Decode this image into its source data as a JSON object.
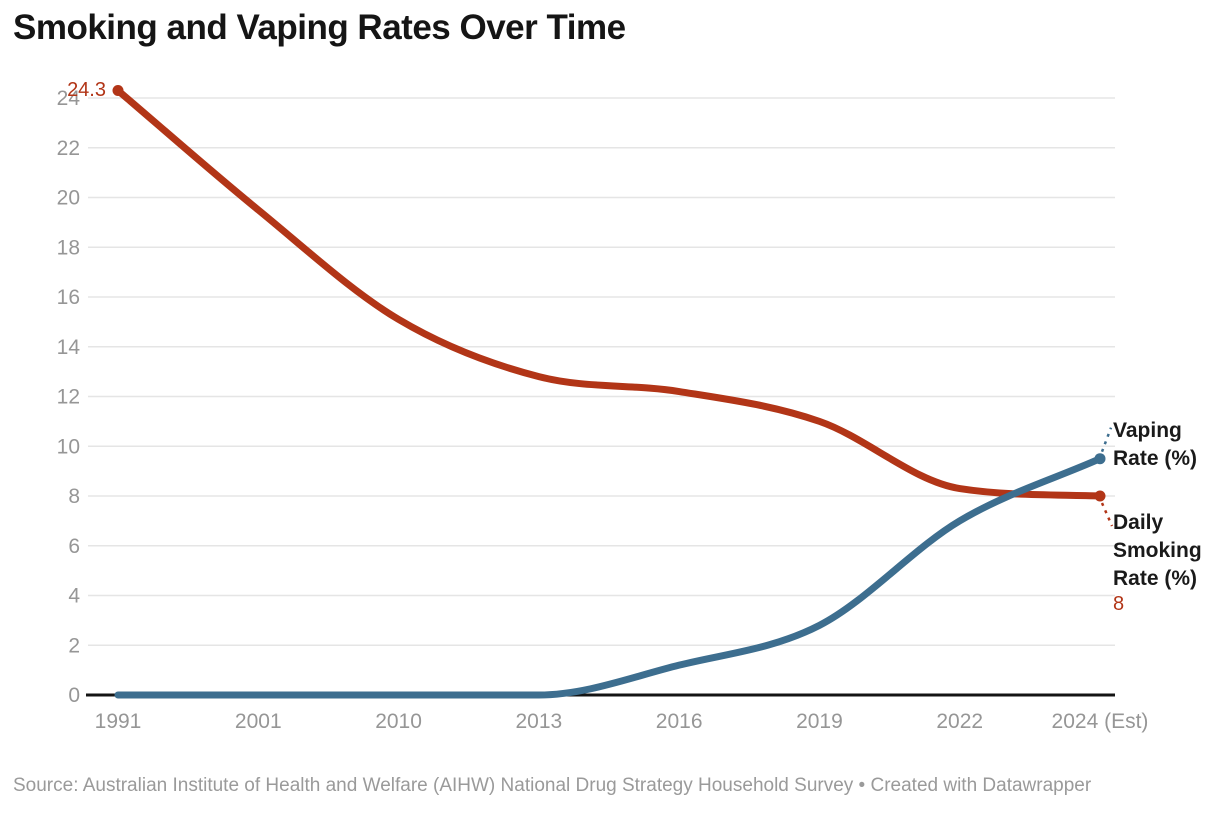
{
  "title": "Smoking and Vaping Rates Over Time",
  "source_note": "Source: Australian Institute of Health and Welfare (AIHW) National Drug Strategy Household Survey • Created with Datawrapper",
  "annotations": {
    "vaping_label": "Vaping Rate (%)",
    "smoking_label": "Daily Smoking Rate (%)",
    "smoking_start_value": "24.3",
    "smoking_end_value": "8"
  },
  "colors": {
    "smoking": "#b23517",
    "vaping": "#3d6e8f",
    "grid": "#e5e5e5",
    "axis": "#141414",
    "tick_text": "#969696"
  },
  "chart_data": {
    "type": "line",
    "title": "Smoking and Vaping Rates Over Time",
    "categories": [
      "1991",
      "2001",
      "2010",
      "2013",
      "2016",
      "2019",
      "2022",
      "2024 (Est)"
    ],
    "series": [
      {
        "name": "Daily Smoking Rate (%)",
        "color": "#b23517",
        "values": [
          24.3,
          19.5,
          15.1,
          12.8,
          12.2,
          11.0,
          8.3,
          8
        ]
      },
      {
        "name": "Vaping Rate (%)",
        "color": "#3d6e8f",
        "values": [
          0,
          0,
          0,
          0,
          1.2,
          2.8,
          7.0,
          9.5
        ]
      }
    ],
    "ylim": [
      0,
      24
    ],
    "ytick_step": 2,
    "xlabel": "",
    "ylabel": "",
    "grid": "horizontal",
    "legend_position": "right-edge-direct-labels",
    "point_labels": {
      "smoking_first": "24.3",
      "smoking_last": "8"
    }
  }
}
